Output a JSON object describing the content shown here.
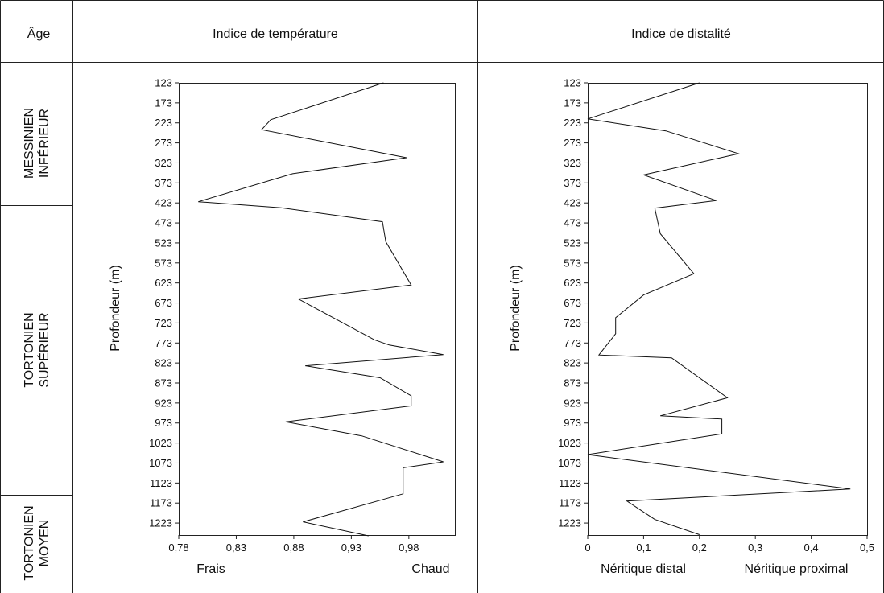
{
  "header": {
    "age": "Âge",
    "col1": "Indice de température",
    "col2": "Indice de distalité"
  },
  "ages": [
    {
      "line1": "MESSINIEN",
      "line2": "INFÉRIEUR"
    },
    {
      "line1": "TORTONIEN",
      "line2": "SUPÉRIEUR"
    },
    {
      "line1": "TORTONIEN",
      "line2": "MOYEN"
    }
  ],
  "chart_data": [
    {
      "type": "line",
      "title": "Indice de température",
      "ylabel": "Profondeur (m)",
      "y_inverted": true,
      "yticks": [
        123,
        173,
        223,
        273,
        323,
        373,
        423,
        473,
        523,
        573,
        623,
        673,
        723,
        773,
        823,
        873,
        923,
        973,
        1023,
        1073,
        1123,
        1173,
        1223
      ],
      "ylim": [
        123,
        1253
      ],
      "xticks": [
        "0,78",
        "0,83",
        "0,88",
        "0,93",
        "0,98"
      ],
      "xlim": [
        0.78,
        1.02
      ],
      "x_end_labels": {
        "left": "Frais",
        "right": "Chaud"
      },
      "depth": [
        123,
        215,
        240,
        310,
        350,
        420,
        435,
        470,
        520,
        628,
        663,
        765,
        778,
        802,
        830,
        860,
        905,
        930,
        970,
        1005,
        1070,
        1085,
        1150,
        1220,
        1255
      ],
      "values": [
        0.958,
        0.86,
        0.852,
        0.978,
        0.879,
        0.797,
        0.869,
        0.957,
        0.96,
        0.982,
        0.884,
        0.95,
        0.963,
        1.01,
        0.89,
        0.955,
        0.982,
        0.982,
        0.873,
        0.939,
        1.01,
        0.975,
        0.975,
        0.888,
        0.945
      ]
    },
    {
      "type": "line",
      "title": "Indice de distalité",
      "ylabel": "Profondeur (m)",
      "y_inverted": true,
      "yticks": [
        123,
        173,
        223,
        273,
        323,
        373,
        423,
        473,
        523,
        573,
        623,
        673,
        723,
        773,
        823,
        873,
        923,
        973,
        1023,
        1073,
        1123,
        1173,
        1223
      ],
      "ylim": [
        123,
        1253
      ],
      "xticks": [
        "0",
        "0,1",
        "0,2",
        "0,3",
        "0,4",
        "0,5"
      ],
      "xlim": [
        0,
        0.5
      ],
      "x_end_labels": {
        "left": "Néritique distal",
        "right": "Néritique proximal"
      },
      "depth": [
        123,
        213,
        243,
        300,
        353,
        417,
        436,
        500,
        600,
        653,
        710,
        750,
        803,
        810,
        910,
        955,
        963,
        1000,
        1052,
        1138,
        1168,
        1214,
        1252
      ],
      "values": [
        0.2,
        0.0,
        0.14,
        0.27,
        0.1,
        0.23,
        0.12,
        0.13,
        0.19,
        0.1,
        0.05,
        0.05,
        0.02,
        0.15,
        0.25,
        0.13,
        0.24,
        0.24,
        0.0,
        0.47,
        0.07,
        0.12,
        0.2
      ]
    }
  ]
}
